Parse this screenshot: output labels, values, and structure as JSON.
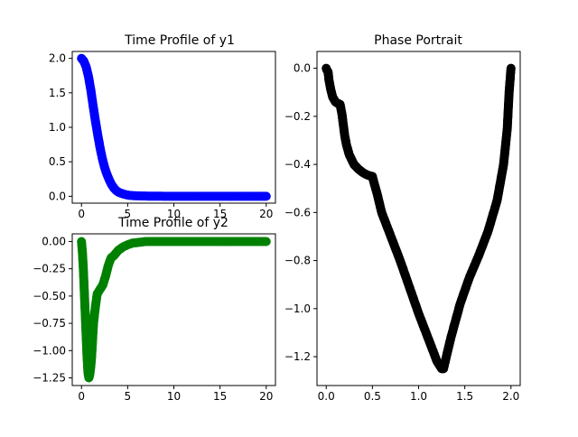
{
  "chart_data": [
    {
      "type": "scatter",
      "title": "Time Profile of y1",
      "xlabel": "",
      "ylabel": "",
      "xlim": [
        -1,
        21
      ],
      "ylim": [
        -0.1,
        2.1
      ],
      "x_ticks": [
        0,
        5,
        10,
        15,
        20
      ],
      "y_ticks": [
        0.0,
        0.5,
        1.0,
        1.5,
        2.0
      ],
      "x_tick_labels": [
        "0",
        "5",
        "10",
        "15",
        "20"
      ],
      "y_tick_labels": [
        "0.0",
        "0.5",
        "1.0",
        "1.5",
        "2.0"
      ],
      "color": "#0000ff",
      "series": [
        {
          "x": [
            0,
            0.25,
            0.5,
            0.75,
            1,
            1.25,
            1.5,
            1.75,
            2,
            2.25,
            2.5,
            2.75,
            3,
            3.25,
            3.5,
            3.75,
            4,
            4.25,
            4.5,
            4.75,
            5,
            5.25,
            5.5,
            5.75,
            6,
            6.5,
            7,
            7.5,
            8,
            9,
            10,
            11,
            12,
            13,
            14,
            15,
            16,
            17,
            18,
            19,
            20
          ],
          "y": [
            2.0,
            1.96,
            1.88,
            1.74,
            1.55,
            1.32,
            1.1,
            0.9,
            0.71,
            0.55,
            0.42,
            0.32,
            0.24,
            0.17,
            0.12,
            0.085,
            0.06,
            0.045,
            0.035,
            0.025,
            0.018,
            0.013,
            0.01,
            0.008,
            0.006,
            0.004,
            0.003,
            0.002,
            0.001,
            0.0,
            0.0,
            0.0,
            0.0,
            0.0,
            0.0,
            0.0,
            0.0,
            0.0,
            0.0,
            0.0,
            0.0
          ]
        }
      ]
    },
    {
      "type": "scatter",
      "title": "Time Profile of y2",
      "xlabel": "",
      "ylabel": "",
      "xlim": [
        -1,
        21
      ],
      "ylim": [
        -1.32,
        0.07
      ],
      "x_ticks": [
        0,
        5,
        10,
        15,
        20
      ],
      "y_ticks": [
        -1.25,
        -1.0,
        -0.75,
        -0.5,
        -0.25,
        0.0
      ],
      "x_tick_labels": [
        "0",
        "5",
        "10",
        "15",
        "20"
      ],
      "y_tick_labels": [
        "−1.25",
        "−1.00",
        "−0.75",
        "−0.50",
        "−0.25",
        "0.00"
      ],
      "color": "#008000",
      "series": [
        {
          "x": [
            0,
            0.1,
            0.2,
            0.3,
            0.4,
            0.5,
            0.6,
            0.7,
            0.8,
            0.9,
            1.0,
            1.1,
            1.2,
            1.3,
            1.5,
            1.7,
            2.0,
            2.3,
            2.6,
            2.9,
            3.2,
            3.5,
            4.0,
            4.5,
            5.0,
            5.5,
            6.0,
            7,
            8,
            9,
            10,
            11,
            12,
            13,
            14,
            15,
            16,
            17,
            18,
            19,
            20
          ],
          "y": [
            0.0,
            -0.1,
            -0.25,
            -0.45,
            -0.65,
            -0.85,
            -1.05,
            -1.2,
            -1.25,
            -1.22,
            -1.15,
            -1.05,
            -0.9,
            -0.75,
            -0.6,
            -0.48,
            -0.44,
            -0.4,
            -0.32,
            -0.22,
            -0.15,
            -0.13,
            -0.08,
            -0.05,
            -0.03,
            -0.015,
            -0.01,
            0.0,
            0.0,
            0.0,
            0.0,
            0.0,
            0.0,
            0.0,
            0.0,
            0.0,
            0.0,
            0.0,
            0.0,
            0.0,
            0.0
          ]
        }
      ]
    },
    {
      "type": "scatter",
      "title": "Phase Portrait",
      "xlabel": "",
      "ylabel": "",
      "xlim": [
        -0.1,
        2.1
      ],
      "ylim": [
        -1.32,
        0.07
      ],
      "x_ticks": [
        0.0,
        0.5,
        1.0,
        1.5,
        2.0
      ],
      "y_ticks": [
        -1.2,
        -1.0,
        -0.8,
        -0.6,
        -0.4,
        -0.2,
        0.0
      ],
      "x_tick_labels": [
        "0.0",
        "0.5",
        "1.0",
        "1.5",
        "2.0"
      ],
      "y_tick_labels": [
        "−1.2",
        "−1.0",
        "−0.8",
        "−0.6",
        "−0.4",
        "−0.2",
        "0.0"
      ],
      "color": "#000000",
      "series": [
        {
          "x": [
            0.0,
            0.01,
            0.02,
            0.03,
            0.05,
            0.07,
            0.1,
            0.12,
            0.15,
            0.17,
            0.18,
            0.2,
            0.22,
            0.25,
            0.3,
            0.35,
            0.4,
            0.45,
            0.5,
            0.52,
            0.55,
            0.6,
            0.7,
            0.8,
            0.9,
            1.0,
            1.1,
            1.2,
            1.25,
            1.27,
            1.3,
            1.35,
            1.45,
            1.55,
            1.65,
            1.75,
            1.85,
            1.92,
            1.96,
            1.98,
            2.0
          ],
          "y": [
            0.0,
            -0.01,
            -0.015,
            -0.05,
            -0.09,
            -0.12,
            -0.14,
            -0.145,
            -0.15,
            -0.19,
            -0.22,
            -0.28,
            -0.32,
            -0.36,
            -0.4,
            -0.42,
            -0.435,
            -0.445,
            -0.45,
            -0.48,
            -0.52,
            -0.6,
            -0.7,
            -0.8,
            -0.91,
            -1.02,
            -1.12,
            -1.22,
            -1.25,
            -1.25,
            -1.2,
            -1.12,
            -0.98,
            -0.87,
            -0.78,
            -0.68,
            -0.55,
            -0.4,
            -0.25,
            -0.1,
            0.0
          ]
        }
      ]
    }
  ]
}
